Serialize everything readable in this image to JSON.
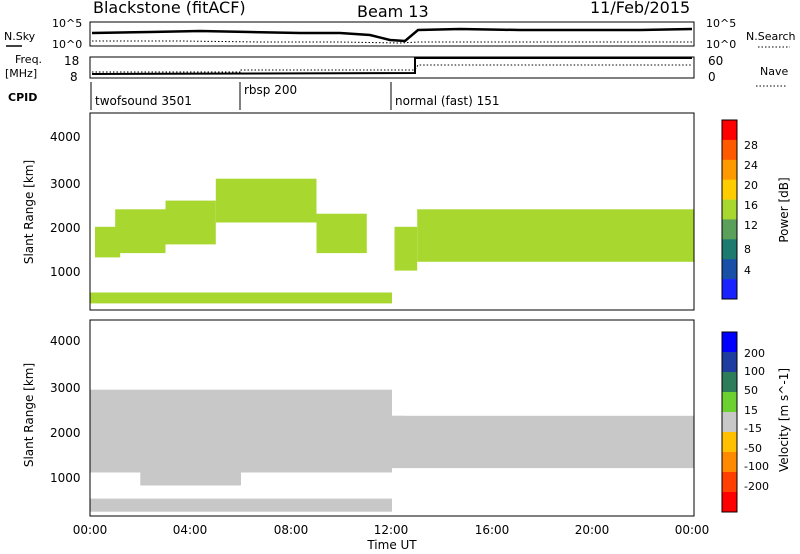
{
  "header": {
    "station": "Blackstone (fitACF)",
    "beam": "Beam 13",
    "date": "11/Feb/2015"
  },
  "noise_panel": {
    "left_label": "N.Sky",
    "right_label": "N.Search",
    "left_ticks": [
      "10^5",
      "10^0"
    ],
    "right_ticks": [
      "10^5",
      "10^0"
    ]
  },
  "freq_panel": {
    "left_label_line1": "Freq.",
    "left_label_line2": "[MHz]",
    "left_ticks": [
      "18",
      "8"
    ],
    "right_ticks": [
      "60",
      "0"
    ],
    "right_label": "Nave"
  },
  "cpid_panel": {
    "label": "CPID",
    "segments": [
      {
        "name": "twofsound",
        "id": "3501",
        "start": 0.0,
        "end": 6.0
      },
      {
        "name": "rbsp",
        "id": "200",
        "start": 6.0,
        "end": 12.0
      },
      {
        "name": "normal (fast)",
        "id": "151",
        "start": 12.0,
        "end": 24.0
      }
    ]
  },
  "chart_data": [
    {
      "type": "heatmap",
      "title": "",
      "xlabel": "Time UT",
      "ylabel": "Slant Range [km]",
      "xlim": [
        0,
        24
      ],
      "ylim": [
        0,
        4500
      ],
      "x_ticks": [
        "00:00",
        "04:00",
        "08:00",
        "12:00",
        "16:00",
        "20:00",
        "00:00"
      ],
      "y_ticks": [
        "1000",
        "2000",
        "3000",
        "4000"
      ],
      "colorbar": {
        "label": "Power [dB]",
        "ticks": [
          "28",
          "24",
          "20",
          "16",
          "12",
          "8",
          "4"
        ],
        "colors": [
          "#ff0000",
          "#ff5a00",
          "#ff9900",
          "#ffcc00",
          "#a8d830",
          "#5aa05a",
          "#1d7a6e",
          "#1850a8",
          "#1a22ff"
        ]
      },
      "series": [
        {
          "values": [
            [
              0.2,
              1.2,
              1200,
              1900
            ],
            [
              1.0,
              3.0,
              1300,
              2300
            ],
            [
              3.0,
              5.0,
              1500,
              2500
            ],
            [
              5.0,
              9.0,
              2000,
              3000
            ],
            [
              9.0,
              11.0,
              1300,
              2200
            ],
            [
              12.1,
              13.0,
              900,
              1900
            ],
            [
              13.0,
              24.0,
              1100,
              2300
            ],
            [
              0.0,
              12.0,
              150,
              400
            ]
          ]
        }
      ]
    },
    {
      "type": "heatmap",
      "title": "",
      "xlabel": "Time UT",
      "ylabel": "Slant Range [km]",
      "xlim": [
        0,
        24
      ],
      "ylim": [
        0,
        4500
      ],
      "x_ticks": [
        "00:00",
        "04:00",
        "08:00",
        "12:00",
        "16:00",
        "20:00",
        "00:00"
      ],
      "y_ticks": [
        "1000",
        "2000",
        "3000",
        "4000"
      ],
      "colorbar": {
        "label": "Velocity [m s^-1]",
        "ticks": [
          "200",
          "100",
          "50",
          "15",
          "-15",
          "-50",
          "-100",
          "-200"
        ],
        "colors": [
          "#0000ff",
          "#1f3ca0",
          "#2e7d5a",
          "#6cd030",
          "#c8c8c8",
          "#ffc000",
          "#ff8a00",
          "#ff4000",
          "#ff0000"
        ]
      },
      "series": [
        {
          "values": [
            [
              0.0,
              12.0,
              1000,
              2900
            ],
            [
              12.0,
              24.0,
              1100,
              2300
            ],
            [
              11.3,
              12.5,
              1200,
              2300
            ],
            [
              2.0,
              6.0,
              700,
              1800
            ],
            [
              0.0,
              12.0,
              100,
              400
            ]
          ]
        }
      ]
    }
  ]
}
